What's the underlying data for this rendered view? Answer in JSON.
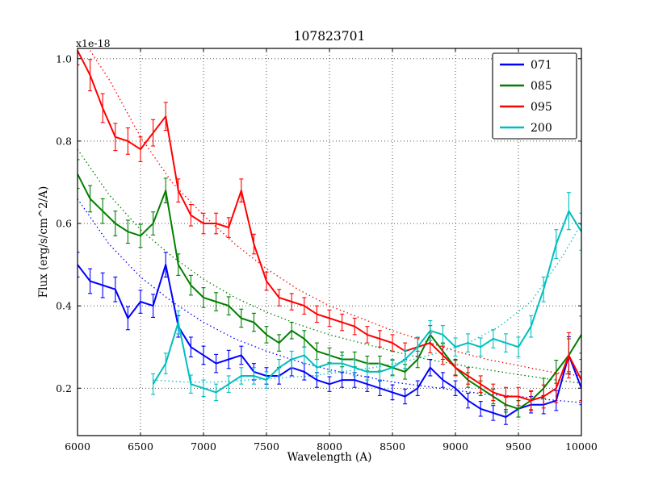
{
  "chart_data": {
    "type": "line",
    "title": "107823701",
    "xlabel": "Wavelength (A)",
    "ylabel": "Flux (erg/s/cm^2/A)",
    "offset_text": "x1e-18",
    "xlim": [
      6000,
      10000
    ],
    "ylim": [
      0.085,
      1.025
    ],
    "xticks": [
      6000,
      6500,
      7000,
      7500,
      8000,
      8500,
      9000,
      9500,
      10000
    ],
    "xtick_labels": [
      "6000",
      "6500",
      "7000",
      "7500",
      "8000",
      "8500",
      "9000",
      "9500",
      "10000"
    ],
    "yticks": [
      0.2,
      0.4,
      0.6,
      0.8,
      1.0
    ],
    "ytick_labels": [
      "0.2",
      "0.4",
      "0.6",
      "0.8",
      "1.0"
    ],
    "grid": true,
    "grid_style": "dotted",
    "grid_color": "#000000",
    "legend_position": "upper right",
    "series": [
      {
        "name": "071",
        "color": "#0000ff",
        "x": [
          6000,
          6100,
          6200,
          6300,
          6400,
          6500,
          6600,
          6700,
          6800,
          6900,
          7000,
          7100,
          7200,
          7300,
          7400,
          7500,
          7600,
          7700,
          7800,
          7900,
          8000,
          8100,
          8200,
          8300,
          8400,
          8500,
          8600,
          8700,
          8800,
          8900,
          9000,
          9100,
          9200,
          9300,
          9400,
          9500,
          9600,
          9700,
          9800,
          9900,
          10000
        ],
        "y": [
          0.5,
          0.46,
          0.45,
          0.44,
          0.37,
          0.41,
          0.4,
          0.5,
          0.35,
          0.3,
          0.28,
          0.26,
          0.27,
          0.28,
          0.24,
          0.23,
          0.23,
          0.25,
          0.24,
          0.22,
          0.21,
          0.22,
          0.22,
          0.21,
          0.2,
          0.19,
          0.18,
          0.2,
          0.25,
          0.22,
          0.2,
          0.17,
          0.15,
          0.14,
          0.13,
          0.15,
          0.16,
          0.16,
          0.17,
          0.28,
          0.2
        ],
        "yerr": [
          0.03,
          0.03,
          0.03,
          0.03,
          0.028,
          0.028,
          0.028,
          0.03,
          0.026,
          0.024,
          0.022,
          0.022,
          0.022,
          0.022,
          0.02,
          0.02,
          0.02,
          0.02,
          0.02,
          0.018,
          0.018,
          0.018,
          0.018,
          0.018,
          0.018,
          0.018,
          0.018,
          0.018,
          0.02,
          0.018,
          0.018,
          0.018,
          0.018,
          0.018,
          0.018,
          0.02,
          0.02,
          0.022,
          0.024,
          0.045,
          0.04
        ]
      },
      {
        "name": "085",
        "color": "#007f00",
        "x": [
          6000,
          6100,
          6200,
          6300,
          6400,
          6500,
          6600,
          6700,
          6800,
          6900,
          7000,
          7100,
          7200,
          7300,
          7400,
          7500,
          7600,
          7700,
          7800,
          7900,
          8000,
          8100,
          8200,
          8300,
          8400,
          8500,
          8600,
          8700,
          8800,
          8900,
          9000,
          9100,
          9200,
          9300,
          9400,
          9500,
          9600,
          9700,
          9800,
          9900,
          10000
        ],
        "y": [
          0.72,
          0.66,
          0.63,
          0.6,
          0.58,
          0.57,
          0.6,
          0.68,
          0.5,
          0.45,
          0.42,
          0.41,
          0.4,
          0.37,
          0.36,
          0.33,
          0.31,
          0.34,
          0.32,
          0.29,
          0.28,
          0.27,
          0.27,
          0.26,
          0.26,
          0.25,
          0.24,
          0.27,
          0.33,
          0.29,
          0.25,
          0.22,
          0.2,
          0.18,
          0.16,
          0.15,
          0.17,
          0.2,
          0.24,
          0.28,
          0.33
        ],
        "yerr": [
          0.035,
          0.032,
          0.03,
          0.03,
          0.028,
          0.028,
          0.028,
          0.03,
          0.026,
          0.024,
          0.024,
          0.022,
          0.022,
          0.022,
          0.022,
          0.02,
          0.02,
          0.02,
          0.02,
          0.02,
          0.018,
          0.018,
          0.018,
          0.018,
          0.018,
          0.018,
          0.018,
          0.02,
          0.022,
          0.02,
          0.018,
          0.018,
          0.018,
          0.018,
          0.018,
          0.02,
          0.022,
          0.024,
          0.028,
          0.04,
          0.045
        ]
      },
      {
        "name": "095",
        "color": "#ff0000",
        "x": [
          6000,
          6100,
          6200,
          6300,
          6400,
          6500,
          6600,
          6700,
          6800,
          6900,
          7000,
          7100,
          7200,
          7300,
          7400,
          7500,
          7600,
          7700,
          7800,
          7900,
          8000,
          8100,
          8200,
          8300,
          8400,
          8500,
          8600,
          8700,
          8800,
          8900,
          9000,
          9100,
          9200,
          9300,
          9400,
          9500,
          9600,
          9700,
          9800,
          9900,
          10000
        ],
        "y": [
          1.02,
          0.96,
          0.88,
          0.81,
          0.8,
          0.78,
          0.82,
          0.86,
          0.68,
          0.62,
          0.6,
          0.6,
          0.59,
          0.68,
          0.55,
          0.46,
          0.42,
          0.41,
          0.4,
          0.38,
          0.37,
          0.36,
          0.35,
          0.33,
          0.32,
          0.31,
          0.29,
          0.3,
          0.31,
          0.28,
          0.25,
          0.23,
          0.21,
          0.19,
          0.18,
          0.18,
          0.17,
          0.18,
          0.2,
          0.28,
          0.22
        ],
        "yerr": [
          0.035,
          0.038,
          0.035,
          0.033,
          0.032,
          0.03,
          0.032,
          0.034,
          0.028,
          0.026,
          0.025,
          0.025,
          0.024,
          0.028,
          0.024,
          0.022,
          0.02,
          0.02,
          0.02,
          0.02,
          0.02,
          0.02,
          0.02,
          0.02,
          0.02,
          0.02,
          0.02,
          0.022,
          0.024,
          0.022,
          0.02,
          0.02,
          0.02,
          0.02,
          0.022,
          0.022,
          0.024,
          0.028,
          0.035,
          0.055,
          0.05
        ]
      },
      {
        "name": "200",
        "color": "#00bfbf",
        "x": [
          6600,
          6700,
          6800,
          6900,
          7000,
          7100,
          7200,
          7300,
          7400,
          7500,
          7600,
          7700,
          7800,
          7900,
          8000,
          8100,
          8200,
          8300,
          8400,
          8500,
          8600,
          8700,
          8800,
          8900,
          9000,
          9100,
          9200,
          9300,
          9400,
          9500,
          9600,
          9700,
          9800,
          9900,
          10000
        ],
        "y": [
          0.21,
          0.26,
          0.36,
          0.21,
          0.2,
          0.19,
          0.21,
          0.23,
          0.23,
          0.22,
          0.25,
          0.27,
          0.28,
          0.25,
          0.26,
          0.26,
          0.25,
          0.24,
          0.24,
          0.25,
          0.27,
          0.3,
          0.34,
          0.33,
          0.3,
          0.31,
          0.3,
          0.32,
          0.31,
          0.3,
          0.35,
          0.44,
          0.55,
          0.63,
          0.58
        ],
        "yerr": [
          0.025,
          0.025,
          0.028,
          0.022,
          0.02,
          0.02,
          0.02,
          0.02,
          0.02,
          0.02,
          0.02,
          0.02,
          0.02,
          0.02,
          0.02,
          0.02,
          0.02,
          0.02,
          0.02,
          0.02,
          0.022,
          0.024,
          0.024,
          0.022,
          0.022,
          0.022,
          0.022,
          0.022,
          0.022,
          0.024,
          0.026,
          0.03,
          0.035,
          0.045,
          0.045
        ]
      }
    ],
    "models": [
      {
        "name": "071-fit",
        "color": "#0000ff",
        "x": [
          6000,
          6250,
          6500,
          6750,
          7000,
          7250,
          7500,
          7750,
          8000,
          8250,
          8500,
          8750,
          9000,
          9250,
          9500,
          9750,
          10000
        ],
        "y": [
          0.66,
          0.55,
          0.47,
          0.41,
          0.36,
          0.32,
          0.29,
          0.265,
          0.245,
          0.23,
          0.215,
          0.205,
          0.195,
          0.185,
          0.18,
          0.172,
          0.165
        ]
      },
      {
        "name": "085-fit",
        "color": "#007f00",
        "x": [
          6000,
          6250,
          6500,
          6750,
          7000,
          7250,
          7500,
          7750,
          8000,
          8250,
          8500,
          8750,
          9000,
          9250,
          9500,
          9750,
          10000
        ],
        "y": [
          0.78,
          0.67,
          0.585,
          0.52,
          0.465,
          0.42,
          0.385,
          0.355,
          0.33,
          0.31,
          0.29,
          0.272,
          0.258,
          0.245,
          0.233,
          0.222,
          0.212
        ]
      },
      {
        "name": "095-fit",
        "color": "#ff0000",
        "x": [
          6100,
          6250,
          6500,
          6750,
          7000,
          7250,
          7500,
          7750,
          8000,
          8250,
          8500,
          8750,
          9000,
          9250,
          9500,
          9750,
          10000
        ],
        "y": [
          1.02,
          0.95,
          0.81,
          0.7,
          0.62,
          0.55,
          0.49,
          0.44,
          0.4,
          0.37,
          0.34,
          0.315,
          0.29,
          0.27,
          0.255,
          0.24,
          0.23
        ]
      },
      {
        "name": "200-fit",
        "color": "#00bfbf",
        "x": [
          6600,
          6850,
          7100,
          7350,
          7600,
          7850,
          8100,
          8350,
          8600,
          8850,
          9100,
          9350,
          9600,
          9850,
          10000
        ],
        "y": [
          0.22,
          0.215,
          0.215,
          0.22,
          0.225,
          0.23,
          0.24,
          0.25,
          0.265,
          0.285,
          0.31,
          0.35,
          0.41,
          0.52,
          0.6
        ]
      }
    ],
    "legend_labels": [
      "071",
      "085",
      "095",
      "200"
    ]
  }
}
